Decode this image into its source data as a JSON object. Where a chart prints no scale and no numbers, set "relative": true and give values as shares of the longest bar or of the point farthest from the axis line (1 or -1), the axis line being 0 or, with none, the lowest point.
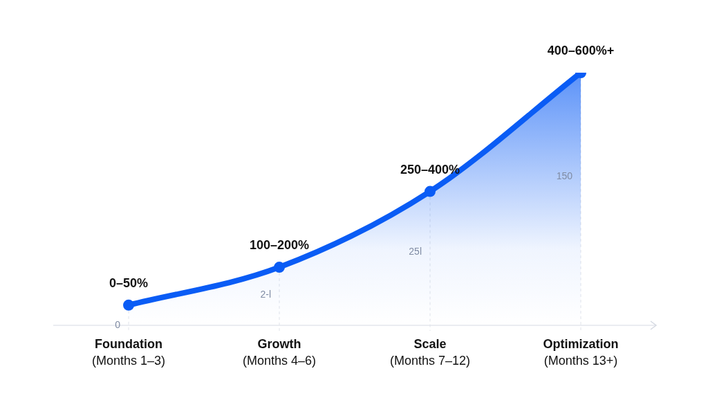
{
  "chart_data": {
    "type": "area",
    "relative": true,
    "categories": [
      "Foundation\n(Months 1–3)",
      "Growth\n(Months 4–6)",
      "Scale\n(Months 7–12)",
      "Optimization\n(Months 13+)"
    ],
    "series": [
      {
        "color": "#0a5cf5",
        "values": [
          0.08,
          0.23,
          0.53,
          1
        ]
      }
    ],
    "marker": "circle",
    "grid": "x",
    "legend": false,
    "annotations": [
      {
        "text": "0–50%",
        "x": "Foundation\n(Months 1–3)",
        "y": 0.08
      },
      {
        "text": "100–200%",
        "x": "Growth\n(Months 4–6)",
        "y": 0.23
      },
      {
        "text": "250–400%",
        "x": "Scale\n(Months 7–12)",
        "y": 0.53
      },
      {
        "text": "400–600%+",
        "x": "Optimization\n(Months 13+)",
        "y": 1
      },
      "0",
      "2-l",
      "25l",
      "150"
    ]
  }
}
